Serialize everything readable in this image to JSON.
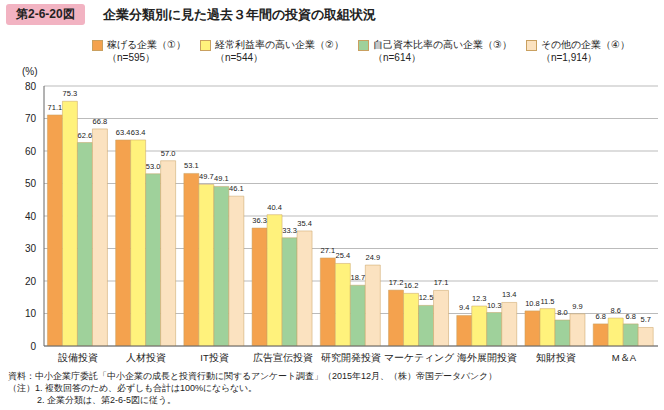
{
  "chart_data": {
    "type": "bar",
    "figure_number": "第2-6-20図",
    "title": "企業分類別に見た過去３年間の投資の取組状況",
    "y_label": "(%)",
    "categories": [
      "設備投資",
      "人材投資",
      "IT投資",
      "広告宣伝投資",
      "研究開発投資",
      "マーケティング",
      "海外展開投資",
      "知財投資",
      "M＆A"
    ],
    "series": [
      {
        "name": "稼げる企業（①）\n（n=595）",
        "color": "#f4a24e",
        "values": [
          71.1,
          63.4,
          53.1,
          36.3,
          27.1,
          17.2,
          9.4,
          10.8,
          6.8
        ],
        "value_labels": [
          "71.1",
          "63.4",
          "53.1",
          "36.3",
          "27.1",
          "17.2",
          "9.4",
          "10.8",
          "6.8"
        ]
      },
      {
        "name": "経常利益率の高い企業（②）\n（n=544）",
        "color": "#fff27c",
        "values": [
          75.3,
          63.4,
          49.7,
          40.4,
          25.4,
          16.2,
          12.3,
          11.5,
          8.6
        ],
        "value_labels": [
          "75.3",
          "63.4",
          "49.7",
          "40.4",
          "25.4",
          "16.2",
          "12.3",
          "11.5",
          "8.6"
        ]
      },
      {
        "name": "自己資本比率の高い企業（③）\n（n=614）",
        "color": "#9fd19b",
        "values": [
          62.6,
          53.0,
          49.1,
          33.3,
          18.7,
          12.5,
          10.3,
          8.0,
          6.8
        ],
        "value_labels": [
          "62.6",
          "53.0",
          "49.1",
          "33.3",
          "18.7",
          "12.5",
          "10.3",
          "8.0",
          "6.8"
        ]
      },
      {
        "name": "その他の企業（④）\n（n=1,914）",
        "color": "#fbe2c0",
        "values": [
          66.8,
          57.0,
          46.1,
          35.4,
          24.9,
          17.1,
          13.4,
          9.9,
          5.7
        ],
        "value_labels": [
          "66.8",
          "57.0",
          "46.1",
          "35.4",
          "24.9",
          "17.1",
          "13.4",
          "9.9",
          "5.7"
        ]
      }
    ],
    "ylim": [
      0,
      80
    ],
    "yticks": [
      0,
      10,
      20,
      30,
      40,
      50,
      60,
      70,
      80
    ],
    "grid": true,
    "data_labels": true,
    "legend": "top",
    "notes": [
      "資料：中小企業庁委託「中小企業の成長と投資行動に関するアンケート調査」（2015年12月、（株）帝国データバンク）",
      "（注）1. 複数回答のため、必ずしも合計は100%にならない。",
      "2. 企業分類は、第2-6-5図に従う。"
    ]
  }
}
